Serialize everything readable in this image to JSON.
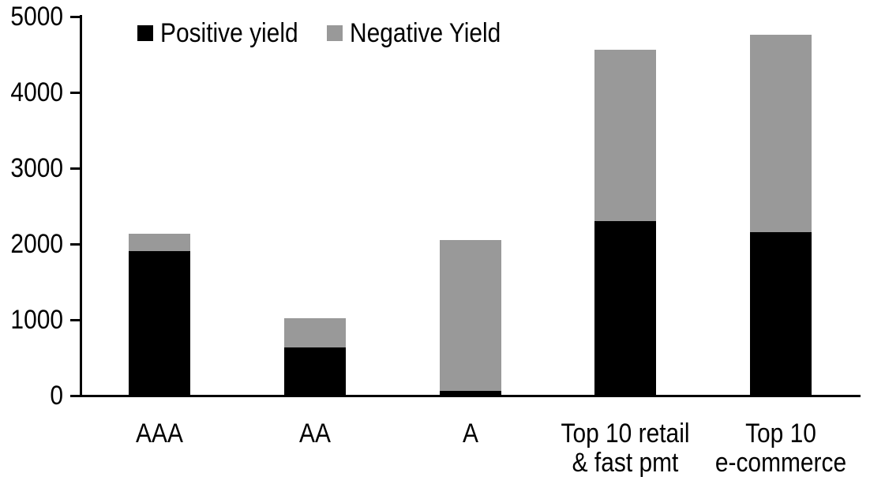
{
  "chart_data": {
    "type": "bar",
    "stacked": true,
    "title": "",
    "xlabel": "",
    "ylabel": "",
    "categories": [
      "AAA",
      "AA",
      "A",
      "Top 10 retail & fast pmt",
      "Top 10 e-commerce"
    ],
    "category_label_lines": [
      [
        "AAA"
      ],
      [
        "AA"
      ],
      [
        "A"
      ],
      [
        "Top 10 retail",
        "& fast pmt"
      ],
      [
        "Top 10",
        "e-commerce"
      ]
    ],
    "series": [
      {
        "name": "Positive yield",
        "color": "#000000",
        "values": [
          1900,
          620,
          50,
          2290,
          2150
        ]
      },
      {
        "name": "Negative Yield",
        "color": "#999999",
        "values": [
          220,
          390,
          1990,
          2260,
          2600
        ]
      }
    ],
    "ylim": [
      0,
      5000
    ],
    "yticks": [
      0,
      1000,
      2000,
      3000,
      4000,
      5000
    ],
    "grid": false,
    "legend_position": "top"
  },
  "axis": {
    "ytick_labels_desc": [
      "5000",
      "4000",
      "3000",
      "2000",
      "1000",
      "0"
    ]
  }
}
